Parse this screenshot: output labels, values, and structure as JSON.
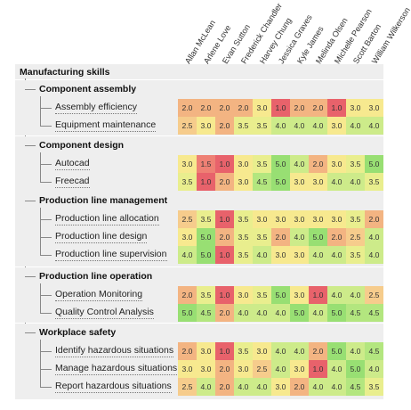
{
  "root_label": "Manufacturing skills",
  "employees": [
    "Allan McLean",
    "Arlene Love",
    "Evan Sutton",
    "Frederick Chandler",
    "Harvey Chung",
    "Jessica Graves",
    "Kyle James",
    "Melinda Olsen",
    "Michelle Pearson",
    "Scott Barton",
    "William Wilkerson"
  ],
  "categories": [
    {
      "label": "Component assembly",
      "skills": [
        {
          "label": "Assembly efficiency",
          "values": [
            "2.0",
            "2.0",
            "2.0",
            "2.0",
            "3.0",
            "1.0",
            "2.0",
            "2.0",
            "1.0",
            "3.0",
            "3.0"
          ]
        },
        {
          "label": "Equipment maintenance",
          "values": [
            "2.5",
            "3.0",
            "2.0",
            "3.5",
            "3.5",
            "4.0",
            "4.0",
            "4.0",
            "3.0",
            "4.0",
            "4.0"
          ]
        }
      ]
    },
    {
      "label": "Component design",
      "skills": [
        {
          "label": "Autocad",
          "values": [
            "3.0",
            "1.5",
            "1.0",
            "3.0",
            "3.5",
            "5.0",
            "4.0",
            "2.0",
            "3.0",
            "3.5",
            "5.0"
          ]
        },
        {
          "label": "Freecad",
          "values": [
            "3.5",
            "1.0",
            "2.0",
            "3.0",
            "4.5",
            "5.0",
            "3.0",
            "3.0",
            "4.0",
            "4.0",
            "3.5"
          ]
        }
      ]
    },
    {
      "label": "Production line management",
      "skills": [
        {
          "label": "Production line allocation",
          "values": [
            "2.5",
            "3.5",
            "1.0",
            "3.5",
            "3.0",
            "3.0",
            "3.0",
            "3.0",
            "3.0",
            "3.5",
            "2.0"
          ]
        },
        {
          "label": "Production line design",
          "values": [
            "3.0",
            "5.0",
            "2.0",
            "3.5",
            "3.5",
            "2.0",
            "4.0",
            "5.0",
            "2.0",
            "2.5",
            "4.0"
          ]
        },
        {
          "label": "Production line supervision",
          "values": [
            "4.0",
            "5.0",
            "1.0",
            "3.5",
            "4.0",
            "3.0",
            "3.0",
            "4.0",
            "4.0",
            "3.5",
            "4.0"
          ]
        }
      ]
    },
    {
      "label": "Production line operation",
      "skills": [
        {
          "label": "Operation Monitoring",
          "values": [
            "2.0",
            "3.5",
            "1.0",
            "3.0",
            "3.5",
            "5.0",
            "3.0",
            "1.0",
            "4.0",
            "4.0",
            "2.5"
          ]
        },
        {
          "label": "Quality Control Analysis",
          "values": [
            "5.0",
            "4.5",
            "2.0",
            "4.0",
            "4.0",
            "4.0",
            "5.0",
            "4.0",
            "5.0",
            "4.5",
            "4.5"
          ]
        }
      ]
    },
    {
      "label": "Workplace safety",
      "skills": [
        {
          "label": "Identify hazardous situations",
          "values": [
            "2.0",
            "3.0",
            "1.0",
            "3.5",
            "3.0",
            "4.0",
            "4.0",
            "2.0",
            "5.0",
            "4.0",
            "4.5"
          ]
        },
        {
          "label": "Manage hazardous situations",
          "values": [
            "3.0",
            "3.0",
            "2.0",
            "3.0",
            "2.5",
            "4.0",
            "3.0",
            "1.0",
            "4.0",
            "5.0",
            "4.0"
          ]
        },
        {
          "label": "Report hazardous situations",
          "values": [
            "2.5",
            "4.0",
            "2.0",
            "4.0",
            "4.0",
            "3.0",
            "2.0",
            "4.0",
            "4.0",
            "4.5",
            "3.5"
          ]
        }
      ]
    }
  ]
}
